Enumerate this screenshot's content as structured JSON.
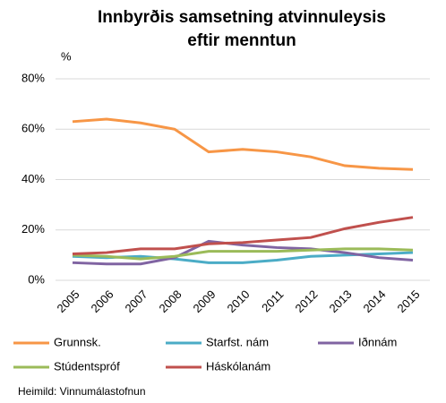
{
  "chart_data": {
    "type": "line",
    "title": "Innbyrðis samsetning atvinnuleysis",
    "subtitle": "eftir menntun",
    "y_label": "%",
    "source": "Heimild: Vinnumálastofnun",
    "categories": [
      "2005",
      "2006",
      "2007",
      "2008",
      "2009",
      "2010",
      "2011",
      "2012",
      "2013",
      "2014",
      "2015"
    ],
    "ylim": [
      0,
      80
    ],
    "yticks": [
      {
        "value": 0,
        "label": "0%"
      },
      {
        "value": 20,
        "label": "20%"
      },
      {
        "value": 40,
        "label": "40%"
      },
      {
        "value": 60,
        "label": "60%"
      },
      {
        "value": 80,
        "label": "80%"
      }
    ],
    "grid": true,
    "series": [
      {
        "name": "Grunnsk.",
        "color": "#f79646",
        "values": [
          63,
          64,
          62.5,
          60,
          51,
          52,
          51,
          49,
          45.5,
          44.5,
          44
        ]
      },
      {
        "name": "Starfst. nám",
        "color": "#4bacc6",
        "values": [
          9.5,
          9,
          9.5,
          8.5,
          7,
          7,
          8,
          9.5,
          10,
          10.5,
          11
        ]
      },
      {
        "name": "Iðnnám",
        "color": "#8064a2",
        "values": [
          7,
          6.5,
          6.5,
          9,
          15.5,
          14,
          13,
          12.5,
          11,
          9,
          8
        ]
      },
      {
        "name": "Stúdentspróf",
        "color": "#9bbb59",
        "values": [
          10,
          9.5,
          8.5,
          9.5,
          11.5,
          11.5,
          11.5,
          12,
          12.5,
          12.5,
          12
        ]
      },
      {
        "name": "Háskólanám",
        "color": "#c0504d",
        "values": [
          10.5,
          11,
          12.5,
          12.5,
          14.5,
          15,
          16,
          17,
          20.5,
          23,
          25
        ]
      }
    ]
  }
}
